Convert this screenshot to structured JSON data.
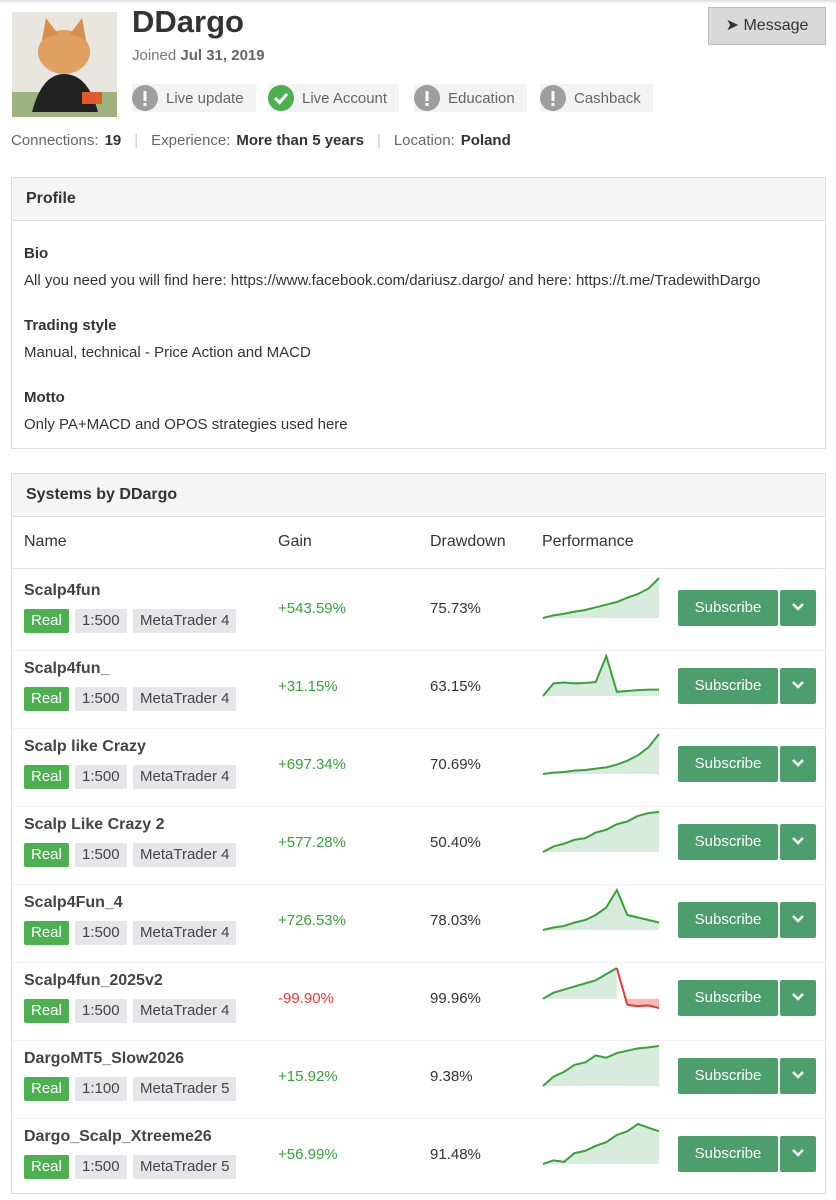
{
  "header": {
    "name": "DDargo",
    "joined_label": "Joined",
    "joined_date": "Jul 31, 2019",
    "message_button": "Message",
    "badges": [
      {
        "label": "Live update",
        "verified": false
      },
      {
        "label": "Live Account",
        "verified": true
      },
      {
        "label": "Education",
        "verified": false
      },
      {
        "label": "Cashback",
        "verified": false
      }
    ],
    "stats": [
      {
        "label": "Connections:",
        "value": "19"
      },
      {
        "label": "Experience:",
        "value": "More than 5 years"
      },
      {
        "label": "Location:",
        "value": "Poland"
      }
    ]
  },
  "profile": {
    "title": "Profile",
    "sections": [
      {
        "heading": "Bio",
        "text": "All you need you will find here: https://www.facebook.com/dariusz.dargo/ and here: https://t.me/TradewithDargo"
      },
      {
        "heading": "Trading style",
        "text": "Manual, technical - Price Action and MACD"
      },
      {
        "heading": "Motto",
        "text": "Only PA+MACD and OPOS strategies used here"
      }
    ]
  },
  "systems": {
    "title": "Systems by DDargo",
    "columns": [
      "Name",
      "Gain",
      "Drawdown",
      "Performance"
    ],
    "subscribe": "Subscribe",
    "positive_color": "#3aa03a",
    "negative_color": "#e53935",
    "rows": [
      {
        "name": "Scalp4fun",
        "type": "Real",
        "leverage": "1:500",
        "platform": "MetaTrader 4",
        "gain": "+543.59%",
        "drawdown": "75.73%",
        "negative": false,
        "performance": [
          0,
          5,
          8,
          12,
          15,
          20,
          25,
          30,
          38,
          45,
          55,
          75
        ]
      },
      {
        "name": "Scalp4fun_",
        "type": "Real",
        "leverage": "1:500",
        "platform": "MetaTrader 4",
        "gain": "+31.15%",
        "drawdown": "63.15%",
        "negative": false,
        "performance": [
          0,
          30,
          32,
          30,
          31,
          33,
          95,
          10,
          12,
          14,
          15,
          15
        ]
      },
      {
        "name": "Scalp like Crazy",
        "type": "Real",
        "leverage": "1:500",
        "platform": "MetaTrader 4",
        "gain": "+697.34%",
        "drawdown": "70.69%",
        "negative": false,
        "performance": [
          0,
          2,
          3,
          5,
          6,
          8,
          10,
          14,
          20,
          28,
          40,
          60
        ]
      },
      {
        "name": "Scalp Like Crazy 2",
        "type": "Real",
        "leverage": "1:500",
        "platform": "MetaTrader 4",
        "gain": "+577.28%",
        "drawdown": "50.40%",
        "negative": false,
        "performance": [
          0,
          10,
          15,
          22,
          25,
          35,
          40,
          50,
          55,
          65,
          70,
          72
        ]
      },
      {
        "name": "Scalp4Fun_4",
        "type": "Real",
        "leverage": "1:500",
        "platform": "MetaTrader 4",
        "gain": "+726.53%",
        "drawdown": "78.03%",
        "negative": false,
        "performance": [
          0,
          5,
          8,
          15,
          20,
          30,
          45,
          80,
          30,
          25,
          20,
          15
        ]
      },
      {
        "name": "Scalp4fun_2025v2",
        "type": "Real",
        "leverage": "1:500",
        "platform": "MetaTrader 4",
        "gain": "-99.90%",
        "drawdown": "99.96%",
        "negative": true,
        "performance": [
          0,
          10,
          15,
          20,
          25,
          30,
          40,
          50,
          -10,
          -12,
          -11,
          -15
        ]
      },
      {
        "name": "DargoMT5_Slow2026",
        "type": "Real",
        "leverage": "1:100",
        "platform": "MetaTrader 5",
        "gain": "+15.92%",
        "drawdown": "9.38%",
        "negative": false,
        "performance": [
          0,
          20,
          30,
          45,
          50,
          65,
          60,
          70,
          75,
          80,
          82,
          85
        ]
      },
      {
        "name": "Dargo_Scalp_Xtreeme26",
        "type": "Real",
        "leverage": "1:500",
        "platform": "MetaTrader 5",
        "gain": "+56.99%",
        "drawdown": "91.48%",
        "negative": false,
        "performance": [
          0,
          5,
          3,
          15,
          18,
          25,
          30,
          40,
          45,
          55,
          50,
          45
        ]
      }
    ]
  }
}
